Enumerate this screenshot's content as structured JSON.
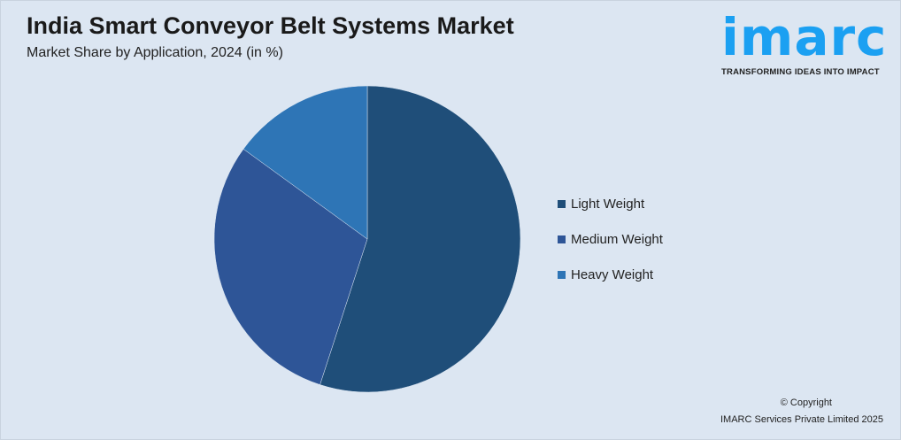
{
  "chart_data": {
    "type": "pie",
    "title": "India Smart Conveyor Belt Systems Market",
    "subtitle": "Market Share by Application, 2024 (in %)",
    "categories": [
      "Light Weight",
      "Medium Weight",
      "Heavy Weight"
    ],
    "values": [
      55,
      30,
      15
    ],
    "colors": [
      "#1f4e79",
      "#2e5597",
      "#2e75b6"
    ],
    "start_angle": "12 o'clock, clockwise",
    "legend_position": "right"
  },
  "logo": {
    "word": "imarc",
    "tagline": "TRANSFORMING IDEAS INTO IMPACT",
    "color": "#1ba0f2"
  },
  "footer": {
    "copyright": "© Copyright",
    "company": "IMARC Services Private Limited 2025"
  }
}
